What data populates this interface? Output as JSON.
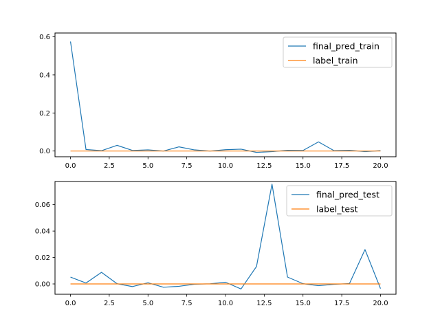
{
  "chart_data": [
    {
      "type": "line",
      "title": "",
      "xlabel": "",
      "ylabel": "",
      "xlim": [
        -1,
        21
      ],
      "ylim": [
        -0.03,
        0.62
      ],
      "xticks": [
        0,
        2.5,
        5,
        7.5,
        10,
        12.5,
        15,
        17.5,
        20
      ],
      "xtick_labels": [
        "0.0",
        "2.5",
        "5.0",
        "7.5",
        "10.0",
        "12.5",
        "15.0",
        "17.5",
        "20.0"
      ],
      "yticks": [
        0,
        0.2,
        0.4,
        0.6
      ],
      "ytick_labels": [
        "0.0",
        "0.2",
        "0.4",
        "0.6"
      ],
      "grid": false,
      "legend_position": "upper right",
      "x": [
        0,
        1,
        2,
        3,
        4,
        5,
        6,
        7,
        8,
        9,
        10,
        11,
        12,
        13,
        14,
        15,
        16,
        17,
        18,
        19,
        20
      ],
      "series": [
        {
          "name": "final_pred_train",
          "color": "#1f77b4",
          "values": [
            0.575,
            0.008,
            0.002,
            0.03,
            0.003,
            0.006,
            0.0,
            0.022,
            0.006,
            0.0,
            0.007,
            0.01,
            -0.007,
            -0.003,
            0.004,
            0.003,
            0.048,
            0.002,
            0.004,
            -0.003,
            0.002
          ]
        },
        {
          "name": "label_train",
          "color": "#ff7f0e",
          "values": [
            0,
            0,
            0,
            0,
            0,
            0,
            0,
            0,
            0,
            0,
            0,
            0,
            0,
            0,
            0,
            0,
            0,
            0,
            0,
            0,
            0
          ]
        }
      ]
    },
    {
      "type": "line",
      "title": "",
      "xlabel": "",
      "ylabel": "",
      "xlim": [
        -1,
        21
      ],
      "ylim": [
        -0.0078,
        0.0775
      ],
      "xticks": [
        0,
        2.5,
        5,
        7.5,
        10,
        12.5,
        15,
        17.5,
        20
      ],
      "xtick_labels": [
        "0.0",
        "2.5",
        "5.0",
        "7.5",
        "10.0",
        "12.5",
        "15.0",
        "17.5",
        "20.0"
      ],
      "yticks": [
        0,
        0.02,
        0.04,
        0.06
      ],
      "ytick_labels": [
        "0.00",
        "0.02",
        "0.04",
        "0.06"
      ],
      "grid": false,
      "legend_position": "upper right",
      "x": [
        0,
        1,
        2,
        3,
        4,
        5,
        6,
        7,
        8,
        9,
        10,
        11,
        12,
        13,
        14,
        15,
        16,
        17,
        18,
        19,
        20
      ],
      "series": [
        {
          "name": "final_pred_test",
          "color": "#1f77b4",
          "values": [
            0.0052,
            0.0007,
            0.0088,
            0.0002,
            -0.002,
            0.0009,
            -0.0025,
            -0.0018,
            -0.0002,
            0.0001,
            0.0013,
            -0.0038,
            0.0132,
            0.0755,
            0.0052,
            0.0002,
            -0.0013,
            -0.0003,
            0.0003,
            0.026,
            -0.0035
          ]
        },
        {
          "name": "label_test",
          "color": "#ff7f0e",
          "values": [
            0,
            0,
            0,
            0,
            0,
            0,
            0,
            0,
            0,
            0,
            0,
            0,
            0,
            0,
            0,
            0,
            0,
            0,
            0,
            0,
            0
          ]
        }
      ]
    }
  ]
}
